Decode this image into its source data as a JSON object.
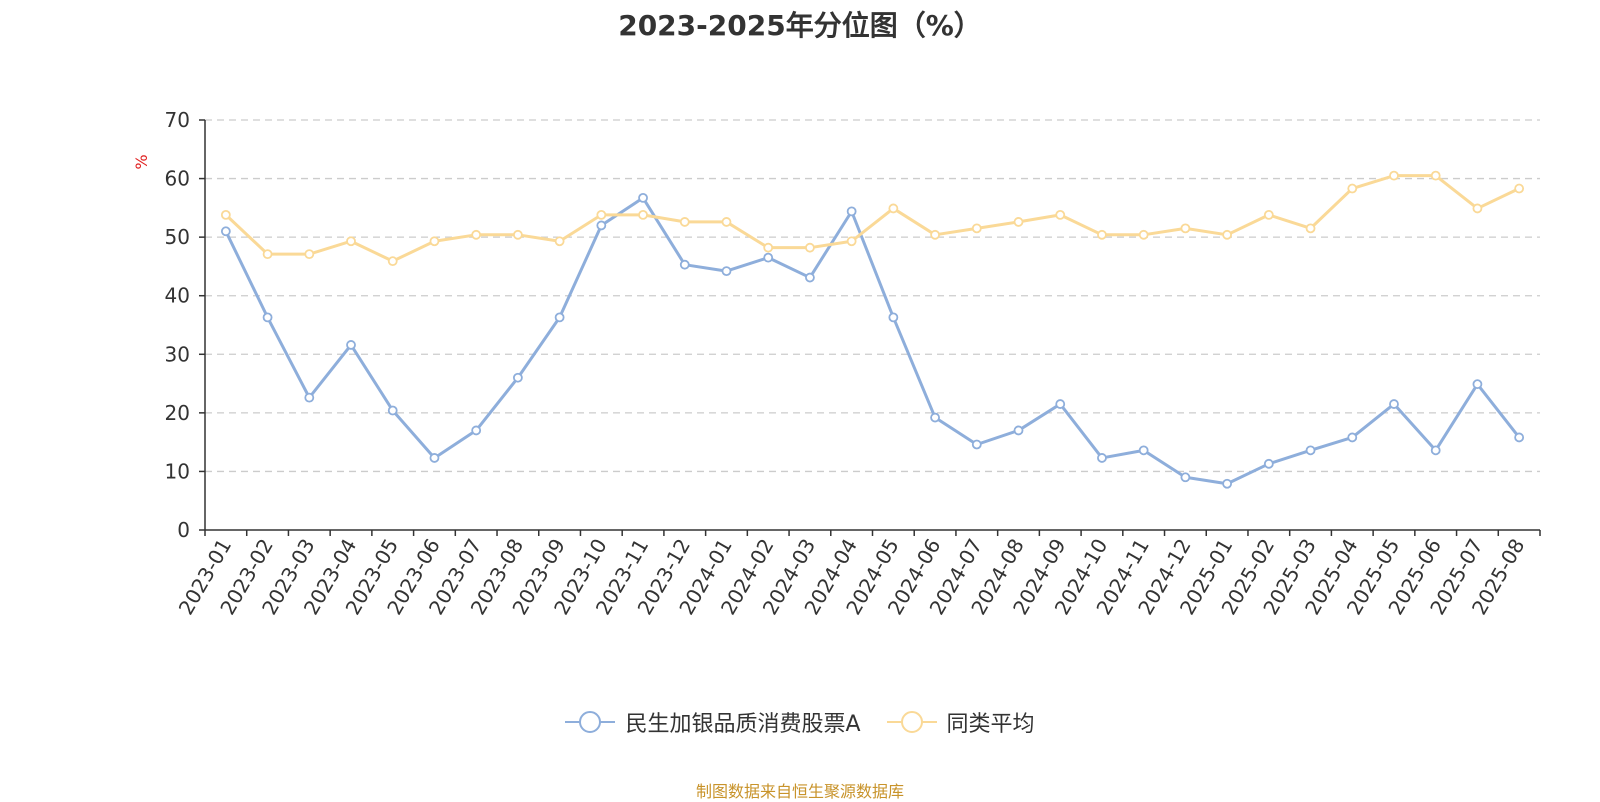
{
  "chart_data": {
    "type": "line",
    "title": "2023-2025年分位图（%）",
    "ylabel": "%",
    "ylim": [
      0,
      70
    ],
    "yticks": [
      "0",
      "10",
      "20",
      "30",
      "40",
      "50",
      "60",
      "70"
    ],
    "grid": true,
    "legend_position": "bottom",
    "categories": [
      "2023-01",
      "2023-02",
      "2023-03",
      "2023-04",
      "2023-05",
      "2023-06",
      "2023-07",
      "2023-08",
      "2023-09",
      "2023-10",
      "2023-11",
      "2023-12",
      "2024-01",
      "2024-02",
      "2024-03",
      "2024-04",
      "2024-05",
      "2024-06",
      "2024-07",
      "2024-08",
      "2024-09",
      "2024-10",
      "2024-11",
      "2024-12",
      "2025-01",
      "2025-02",
      "2025-03",
      "2025-04",
      "2025-05",
      "2025-06",
      "2025-07",
      "2025-08"
    ],
    "series": [
      {
        "name": "民生加银品质消费股票A",
        "color": "#8eaedb",
        "values": [
          51.0,
          36.3,
          22.6,
          31.6,
          20.4,
          12.3,
          17.0,
          26.0,
          36.3,
          52.0,
          56.7,
          45.3,
          44.2,
          46.5,
          43.1,
          54.4,
          36.3,
          19.2,
          14.6,
          17.0,
          21.5,
          12.3,
          13.6,
          9.0,
          7.9,
          11.3,
          13.6,
          15.8,
          21.5,
          13.6,
          24.9,
          15.8
        ]
      },
      {
        "name": "同类平均",
        "color": "#fad997",
        "values": [
          53.8,
          47.1,
          47.1,
          49.3,
          45.9,
          49.3,
          50.4,
          50.4,
          49.3,
          53.8,
          53.8,
          52.6,
          52.6,
          48.2,
          48.2,
          49.3,
          54.9,
          50.4,
          51.5,
          52.6,
          53.8,
          50.4,
          50.4,
          51.5,
          50.4,
          53.8,
          51.5,
          58.3,
          60.5,
          60.5,
          54.9,
          58.3
        ]
      }
    ]
  },
  "source_note": "制图数据来自恒生聚源数据库"
}
